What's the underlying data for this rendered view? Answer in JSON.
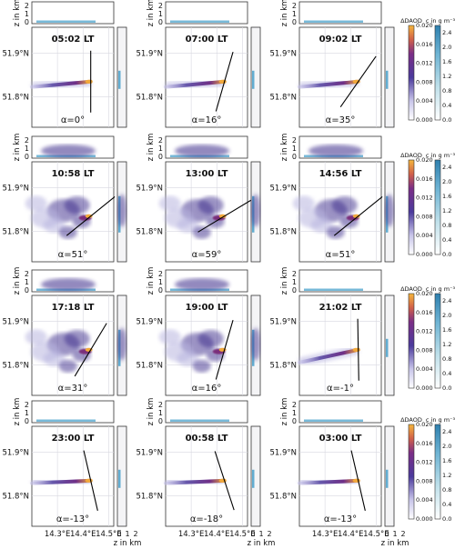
{
  "chart_data": {
    "type": "heatmap",
    "x_axis": {
      "label": "",
      "ticks": [
        "14.3°E",
        "14.4°E",
        "14.5°E"
      ],
      "values": [
        14.3,
        14.4,
        14.5
      ],
      "range": [
        14.2,
        14.52
      ]
    },
    "y_axis": {
      "ticks": [
        "51.9°N",
        "51.8°N"
      ],
      "values": [
        51.9,
        51.8
      ],
      "range": [
        51.73,
        51.96
      ]
    },
    "top_panel": {
      "ylabel": "z in km",
      "ticks": [
        "0",
        "1",
        "2"
      ]
    },
    "side_panel": {
      "xlabel": "z in km",
      "ticks": [
        "0",
        "1",
        "2"
      ]
    },
    "colorbars": [
      {
        "title": "ΔDAOD",
        "ticks": [
          "0.000",
          "0.004",
          "0.008",
          "0.012",
          "0.016",
          "0.020"
        ],
        "range": [
          0.0,
          0.02
        ],
        "colormap": "purple-orange"
      },
      {
        "title": "c in g m⁻³",
        "ticks": [
          "0.0",
          "0.4",
          "0.8",
          "1.2",
          "1.6",
          "2.0",
          "2.4"
        ],
        "range": [
          0.0,
          2.6
        ],
        "colormap": "light-blue"
      }
    ],
    "panels": [
      {
        "time": "05:02 LT",
        "angle": "α=0°",
        "plume": "narrow westward streak"
      },
      {
        "time": "07:00 LT",
        "angle": "α=16°",
        "plume": "narrow westward streak"
      },
      {
        "time": "09:02 LT",
        "angle": "α=35°",
        "plume": "narrow westward streak"
      },
      {
        "time": "10:58 LT",
        "angle": "α=51°",
        "plume": "diffuse"
      },
      {
        "time": "13:00 LT",
        "angle": "α=59°",
        "plume": "diffuse"
      },
      {
        "time": "14:56 LT",
        "angle": "α=51°",
        "plume": "diffuse"
      },
      {
        "time": "17:18 LT",
        "angle": "α=31°",
        "plume": "diffuse, fanning north-west"
      },
      {
        "time": "19:00 LT",
        "angle": "α=16°",
        "plume": "diffuse, fanning north-west"
      },
      {
        "time": "21:02 LT",
        "angle": "α=-1°",
        "plume": "narrow south-westward streak"
      },
      {
        "time": "23:00 LT",
        "angle": "α=-13°",
        "plume": "narrow westward streak"
      },
      {
        "time": "00:58 LT",
        "angle": "α=-18°",
        "plume": "narrow westward streak"
      },
      {
        "time": "03:00 LT",
        "angle": "α=-13°",
        "plume": "narrow westward streak"
      }
    ]
  },
  "colors": {
    "plume_high": "#f2a93b",
    "plume_mid": "#7a2f7a",
    "plume_low": "#3b2a8a",
    "plume_faint": "#b9b6e0",
    "concentration": "#3d9bc8",
    "section_line": "#000000"
  }
}
